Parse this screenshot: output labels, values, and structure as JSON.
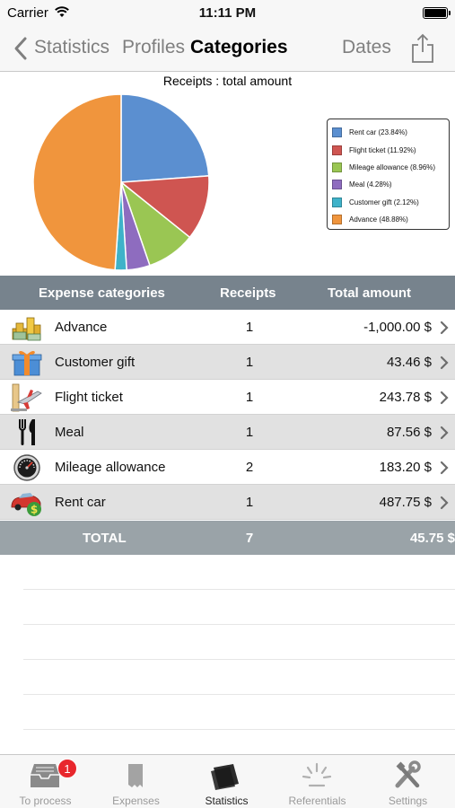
{
  "status_bar": {
    "carrier": "Carrier",
    "time": "11:11 PM"
  },
  "nav": {
    "back_label": "Statistics",
    "profiles_label": "Profiles",
    "title": "Categories",
    "dates_label": "Dates"
  },
  "chart_data": {
    "type": "pie",
    "title": "Receipts : total amount",
    "slices": [
      {
        "name": "Rent car",
        "value": 23.84,
        "label": "Rent car (23.84%)",
        "color": "#5b8fd0"
      },
      {
        "name": "Flight ticket",
        "value": 11.92,
        "label": "Flight ticket (11.92%)",
        "color": "#cf5551"
      },
      {
        "name": "Mileage allowance",
        "value": 8.96,
        "label": "Mileage allowance (8.96%)",
        "color": "#9ac653"
      },
      {
        "name": "Meal",
        "value": 4.28,
        "label": "Meal (4.28%)",
        "color": "#8e6cbf"
      },
      {
        "name": "Customer gift",
        "value": 2.12,
        "label": "Customer gift (2.12%)",
        "color": "#3fb2c9"
      },
      {
        "name": "Advance",
        "value": 48.88,
        "label": "Advance (48.88%)",
        "color": "#f0953d"
      }
    ],
    "legend_position": "right"
  },
  "table": {
    "headers": {
      "category": "Expense categories",
      "receipts": "Receipts",
      "amount": "Total amount"
    },
    "rows": [
      {
        "name": "Advance",
        "count": "1",
        "amount": "-1,000.00 $",
        "icon": "coins-icon"
      },
      {
        "name": "Customer gift",
        "count": "1",
        "amount": "43.46 $",
        "icon": "gift-icon"
      },
      {
        "name": "Flight ticket",
        "count": "1",
        "amount": "243.78 $",
        "icon": "airplane-icon"
      },
      {
        "name": "Meal",
        "count": "1",
        "amount": "87.56 $",
        "icon": "cutlery-icon"
      },
      {
        "name": "Mileage allowance",
        "count": "2",
        "amount": "183.20 $",
        "icon": "speedometer-icon"
      },
      {
        "name": "Rent car",
        "count": "1",
        "amount": "487.75 $",
        "icon": "rental-car-icon"
      }
    ],
    "total": {
      "label": "TOTAL",
      "count": "7",
      "amount": "45.75 $"
    }
  },
  "tabs": [
    {
      "label": "To process",
      "icon": "inbox-icon",
      "badge": "1"
    },
    {
      "label": "Expenses",
      "icon": "receipt-icon"
    },
    {
      "label": "Statistics",
      "icon": "statistics-icon",
      "active": true
    },
    {
      "label": "Referentials",
      "icon": "referentials-icon"
    },
    {
      "label": "Settings",
      "icon": "tools-icon"
    }
  ]
}
